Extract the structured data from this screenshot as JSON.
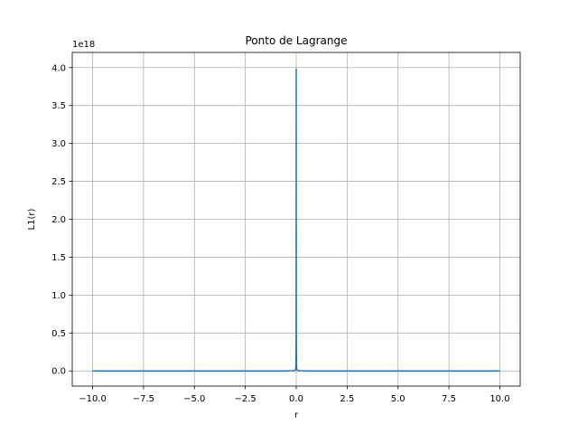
{
  "chart_data": {
    "type": "line",
    "title": "Ponto de Lagrange",
    "xlabel": "r",
    "ylabel": "L1(r)",
    "y_offset_label": "1e18",
    "y_scale_factor": 1e+18,
    "xlim": [
      -11.0,
      11.0
    ],
    "ylim": [
      -0.2,
      4.2
    ],
    "grid": true,
    "x_ticks": [
      -10.0,
      -7.5,
      -5.0,
      -2.5,
      0.0,
      2.5,
      5.0,
      7.5,
      10.0
    ],
    "x_tick_labels": [
      "−10.0",
      "−7.5",
      "−5.0",
      "−2.5",
      "0.0",
      "2.5",
      "5.0",
      "7.5",
      "10.0"
    ],
    "y_ticks": [
      0.0,
      0.5,
      1.0,
      1.5,
      2.0,
      2.5,
      3.0,
      3.5,
      4.0
    ],
    "y_tick_labels": [
      "0.0",
      "0.5",
      "1.0",
      "1.5",
      "2.0",
      "2.5",
      "3.0",
      "3.5",
      "4.0"
    ],
    "series": [
      {
        "color": "#1f77b4",
        "x": [
          -10.0,
          -5.0,
          -2.0,
          -1.0,
          -0.5,
          -0.2,
          -0.1,
          -0.06,
          -0.04,
          -0.03,
          -0.02,
          -0.015,
          -0.01,
          -0.006,
          -0.004,
          -0.002,
          0.0,
          0.002,
          0.004,
          0.006,
          0.01,
          0.015,
          0.02,
          0.03,
          0.04,
          0.06,
          0.1,
          0.2,
          0.5,
          1.0,
          2.0,
          5.0,
          10.0
        ],
        "y": [
          0.0,
          0.0,
          0.0,
          0.0,
          0.0,
          0.002,
          0.004,
          0.008,
          0.015,
          0.025,
          0.05,
          0.09,
          0.2,
          0.5,
          1.2,
          2.6,
          3.98,
          2.6,
          1.2,
          0.5,
          0.2,
          0.09,
          0.05,
          0.025,
          0.015,
          0.008,
          0.004,
          0.002,
          0.0,
          0.0,
          0.0,
          0.0,
          0.0
        ]
      }
    ]
  }
}
